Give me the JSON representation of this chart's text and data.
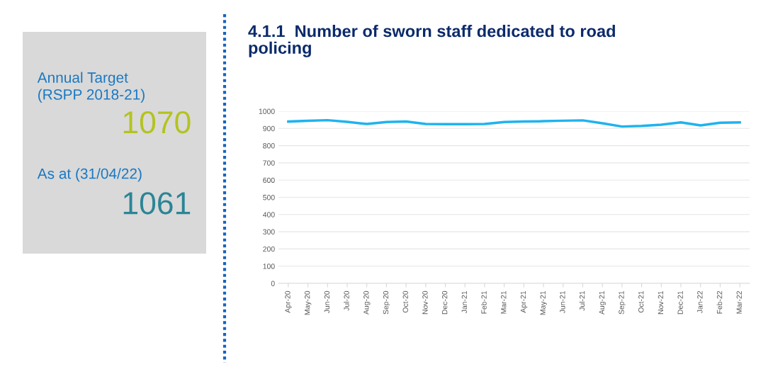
{
  "chart_data": [
    {
      "type": "other",
      "annotations": [
        "Annual Target\n(RSPP 2018-21)",
        "1070",
        "As at (31/04/22)",
        "1061"
      ],
      "colors": [
        "#1a78c2",
        "#b3c320",
        "#1a78c2",
        "#2a8596"
      ]
    },
    {
      "type": "line",
      "title": "4.1.1  Number of sworn staff dedicated to road\npolicing",
      "categories": [
        "Apr-20",
        "May-20",
        "Jun-20",
        "Jul-20",
        "Aug-20",
        "Sep-20",
        "Oct-20",
        "Nov-20",
        "Dec-20",
        "Jan-21",
        "Feb-21",
        "Mar-21",
        "Apr-21",
        "May-21",
        "Jun-21",
        "Jul-21",
        "Aug-21",
        "Sep-21",
        "Oct-21",
        "Nov-21",
        "Dec-21",
        "Jan-22",
        "Feb-22",
        "Mar-22"
      ],
      "series": [
        {
          "color": "#1fb3ef",
          "values": [
            940,
            944,
            948,
            938,
            926,
            937,
            940,
            926,
            925,
            925,
            926,
            937,
            940,
            942,
            945,
            947,
            930,
            911,
            915,
            922,
            935,
            918,
            933,
            935
          ]
        }
      ],
      "ylim": [
        0,
        1000
      ],
      "yticks": [
        0,
        100,
        200,
        300,
        400,
        500,
        600,
        700,
        800,
        900,
        1000
      ],
      "grid": "y",
      "marker": "none",
      "line_style": "solid"
    }
  ]
}
